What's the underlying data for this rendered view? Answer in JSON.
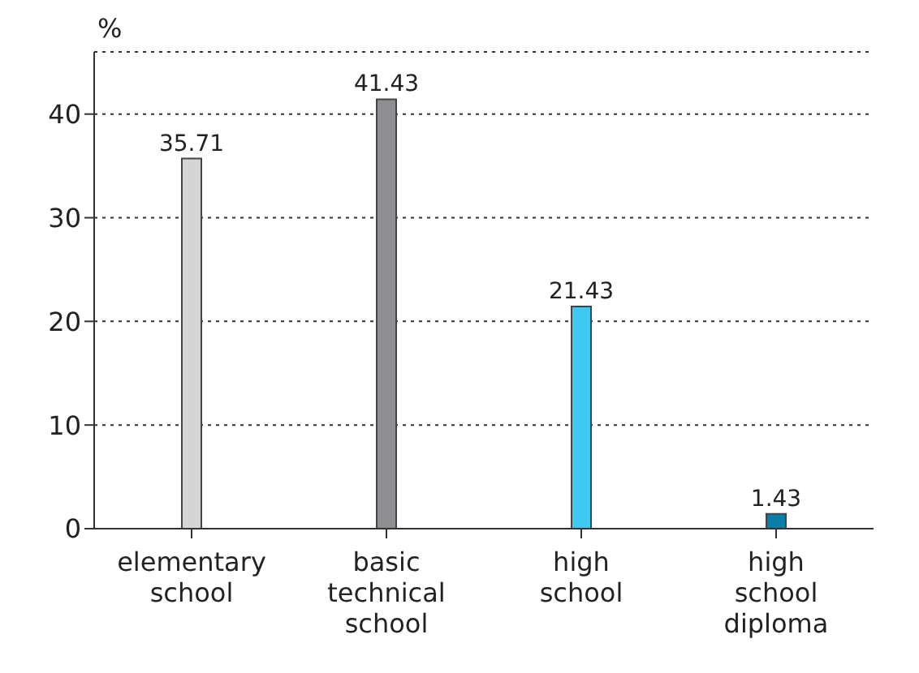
{
  "chart_data": {
    "type": "bar",
    "ylabel": "%",
    "categories": [
      "elementary school",
      "basic technical school",
      "high school",
      "high school diploma"
    ],
    "values": [
      35.71,
      41.43,
      21.43,
      1.43
    ],
    "colors": [
      "#d4d5d7",
      "#8e8f92",
      "#3ec8f2",
      "#0a7ea8"
    ],
    "ylim": [
      0,
      46
    ],
    "yticks": [
      0,
      10,
      20,
      30,
      40
    ],
    "grid": "y",
    "data_labels": true
  }
}
